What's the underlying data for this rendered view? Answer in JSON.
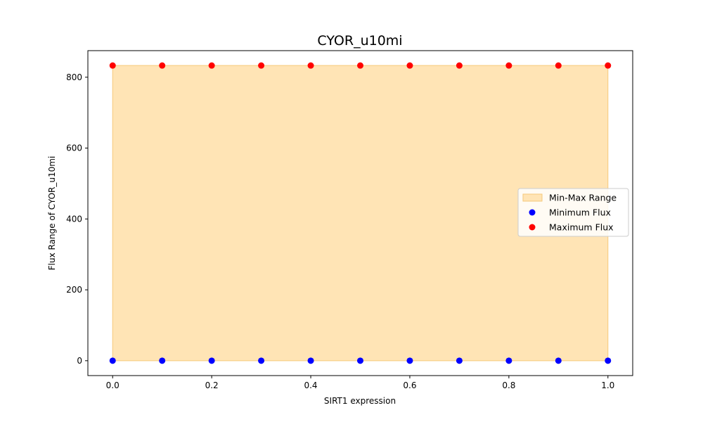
{
  "chart_data": {
    "type": "scatter",
    "title": "CYOR_u10mi",
    "xlabel": "SIRT1 expression",
    "ylabel": "Flux Range of CYOR_u10mi",
    "xlim": [
      -0.05,
      1.05
    ],
    "ylim": [
      -42,
      875
    ],
    "x": [
      0.0,
      0.1,
      0.2,
      0.3,
      0.4,
      0.5,
      0.6,
      0.7,
      0.8,
      0.9,
      1.0
    ],
    "x_ticks": [
      0.0,
      0.2,
      0.4,
      0.6,
      0.8,
      1.0
    ],
    "x_tick_labels": [
      "0.0",
      "0.2",
      "0.4",
      "0.6",
      "0.8",
      "1.0"
    ],
    "y_ticks": [
      0,
      200,
      400,
      600,
      800
    ],
    "y_tick_labels": [
      "0",
      "200",
      "400",
      "600",
      "800"
    ],
    "grid": false,
    "legend_position": "center-right",
    "fill_range": {
      "name": "Min-Max Range",
      "color": "#ffe4b5",
      "edge_color": "#f5c97a",
      "lower": [
        0,
        0,
        0,
        0,
        0,
        0,
        0,
        0,
        0,
        0,
        0
      ],
      "upper": [
        833,
        833,
        833,
        833,
        833,
        833,
        833,
        833,
        833,
        833,
        833
      ]
    },
    "series": [
      {
        "name": "Minimum Flux",
        "color": "#0000ff",
        "values": [
          0,
          0,
          0,
          0,
          0,
          0,
          0,
          0,
          0,
          0,
          0
        ]
      },
      {
        "name": "Maximum Flux",
        "color": "#ff0000",
        "values": [
          833,
          833,
          833,
          833,
          833,
          833,
          833,
          833,
          833,
          833,
          833
        ]
      }
    ]
  }
}
